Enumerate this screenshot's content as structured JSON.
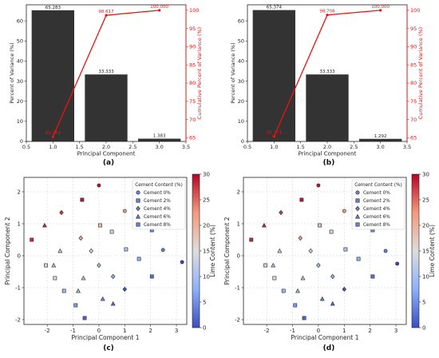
{
  "chart_data": [
    {
      "type": "bar",
      "panel_label": "(a)",
      "xlabel": "Principal Component",
      "ylabel": "Percent of Variance (%)",
      "ylabel_right": "Cumulative Percent of Variance (%)",
      "xlim": [
        0.5,
        3.5
      ],
      "ylim": [
        0,
        68
      ],
      "ylim_right": [
        64,
        101.5
      ],
      "xticks": [
        "0.5",
        "1.0",
        "1.5",
        "2.0",
        "2.5",
        "3.0",
        "3.5"
      ],
      "yticks": [
        "0",
        "10",
        "20",
        "30",
        "40",
        "50",
        "60"
      ],
      "yticks_right": [
        "65",
        "70",
        "75",
        "80",
        "85",
        "90",
        "95",
        "100"
      ],
      "categories": [
        1,
        2,
        3
      ],
      "values": [
        65.283,
        33.333,
        1.383
      ],
      "value_labels": [
        "65.283",
        "33.333",
        "1.383"
      ],
      "cumulative": [
        65.283,
        98.617,
        100.0
      ],
      "cumulative_labels": [
        "65.283",
        "98.617",
        "100.000"
      ],
      "grid": false,
      "bar_color": "#333333",
      "line_color": "#ee1111"
    },
    {
      "type": "bar",
      "panel_label": "(b)",
      "xlabel": "Principal Component",
      "ylabel": "Percent of Variance (%)",
      "ylabel_right": "Cumulative Percent of Variance (%)",
      "xlim": [
        0.5,
        3.5
      ],
      "ylim": [
        0,
        68
      ],
      "ylim_right": [
        64,
        101.5
      ],
      "xticks": [
        "0.5",
        "1.0",
        "1.5",
        "2.0",
        "2.5",
        "3.0",
        "3.5"
      ],
      "yticks": [
        "0",
        "10",
        "20",
        "30",
        "40",
        "50",
        "60"
      ],
      "yticks_right": [
        "65",
        "70",
        "75",
        "80",
        "85",
        "90",
        "95",
        "100"
      ],
      "categories": [
        1,
        2,
        3
      ],
      "values": [
        65.374,
        33.333,
        1.292
      ],
      "value_labels": [
        "65.374",
        "33.333",
        "1.292"
      ],
      "cumulative": [
        65.374,
        98.708,
        100.0
      ],
      "cumulative_labels": [
        "65.374",
        "98.708",
        "100.000"
      ],
      "grid": false,
      "bar_color": "#333333",
      "line_color": "#ee1111"
    },
    {
      "type": "scatter",
      "panel_label": "(c)",
      "xlabel": "Principal Component 1",
      "ylabel": "Principal Component 2",
      "colorbar_label": "Lime Content (%)",
      "colorbar_range": [
        0,
        30
      ],
      "colorbar_ticks": [
        "0",
        "5",
        "10",
        "15",
        "20",
        "25",
        "30"
      ],
      "xlim": [
        -2.9,
        3.4
      ],
      "ylim": [
        -2.15,
        2.45
      ],
      "xticks": [
        "-2",
        "-1",
        "0",
        "1",
        "2",
        "3"
      ],
      "yticks": [
        "-2",
        "-1",
        "0",
        "1",
        "2"
      ],
      "grid": true,
      "legend": {
        "title": "Cement Content (%)",
        "location": "top-right",
        "entries": [
          "Cement 0%",
          "Cement 2%",
          "Cement 4%",
          "Cement 6%",
          "Cement 8%"
        ],
        "markers": [
          "circle",
          "square",
          "diamond",
          "triangle",
          "square"
        ],
        "color": "#6b82c9"
      },
      "points": [
        {
          "x": 3.22,
          "y": -0.2,
          "cement": 0,
          "lime": 0
        },
        {
          "x": 2.48,
          "y": 0.18,
          "cement": 0,
          "lime": 4
        },
        {
          "x": 1.5,
          "y": 1.0,
          "cement": 0,
          "lime": 13
        },
        {
          "x": 1.0,
          "y": 1.4,
          "cement": 0,
          "lime": 22
        },
        {
          "x": 0.0,
          "y": 2.2,
          "cement": 0,
          "lime": 29
        },
        {
          "x": 2.05,
          "y": 0.8,
          "cement": 2,
          "lime": 5
        },
        {
          "x": 1.55,
          "y": -0.1,
          "cement": 2,
          "lime": 8
        },
        {
          "x": 2.05,
          "y": -0.65,
          "cement": 2,
          "lime": 3
        },
        {
          "x": 1.05,
          "y": 0.2,
          "cement": 2,
          "lime": 11
        },
        {
          "x": 0.5,
          "y": 0.75,
          "cement": 2,
          "lime": 14
        },
        {
          "x": 0.05,
          "y": 0.95,
          "cement": 2,
          "lime": 18
        },
        {
          "x": -0.65,
          "y": 1.75,
          "cement": 2,
          "lime": 29
        },
        {
          "x": -2.6,
          "y": 0.5,
          "cement": 2,
          "lime": 28
        },
        {
          "x": -2.05,
          "y": -0.3,
          "cement": 2,
          "lime": 16
        },
        {
          "x": -1.7,
          "y": -0.7,
          "cement": 2,
          "lime": 15
        },
        {
          "x": -1.35,
          "y": -1.1,
          "cement": 2,
          "lime": 9
        },
        {
          "x": -0.9,
          "y": -1.55,
          "cement": 2,
          "lime": 6
        },
        {
          "x": -0.55,
          "y": -1.95,
          "cement": 2,
          "lime": 2
        },
        {
          "x": 1.0,
          "y": -1.05,
          "cement": 4,
          "lime": 1
        },
        {
          "x": 0.0,
          "y": -0.3,
          "cement": 4,
          "lime": 10
        },
        {
          "x": 0.55,
          "y": -0.65,
          "cement": 4,
          "lime": 8
        },
        {
          "x": -0.3,
          "y": 0.15,
          "cement": 4,
          "lime": 14
        },
        {
          "x": -0.7,
          "y": 0.55,
          "cement": 4,
          "lime": 21
        },
        {
          "x": -1.45,
          "y": 1.35,
          "cement": 4,
          "lime": 27
        },
        {
          "x": -2.1,
          "y": 0.95,
          "cement": 6,
          "lime": 28
        },
        {
          "x": -1.5,
          "y": 0.15,
          "cement": 6,
          "lime": 13
        },
        {
          "x": -1.75,
          "y": -0.3,
          "cement": 6,
          "lime": 11
        },
        {
          "x": -0.6,
          "y": -0.7,
          "cement": 6,
          "lime": 12
        },
        {
          "x": -0.8,
          "y": -1.1,
          "cement": 6,
          "lime": 10
        },
        {
          "x": 0.15,
          "y": -1.35,
          "cement": 6,
          "lime": 5
        },
        {
          "x": 0.55,
          "y": -1.5,
          "cement": 6,
          "lime": 3
        }
      ]
    },
    {
      "type": "scatter",
      "panel_label": "(d)",
      "xlabel": "Principal Component 1",
      "ylabel": "Principal Component 2",
      "colorbar_label": "Lime Content (%)",
      "colorbar_range": [
        0,
        30
      ],
      "colorbar_ticks": [
        "0",
        "5",
        "10",
        "15",
        "20",
        "25",
        "30"
      ],
      "xlim": [
        -2.9,
        3.4
      ],
      "ylim": [
        -2.15,
        2.45
      ],
      "xticks": [
        "-2",
        "-1",
        "0",
        "1",
        "2",
        "3"
      ],
      "yticks": [
        "-2",
        "-1",
        "0",
        "1",
        "2"
      ],
      "grid": true,
      "legend": {
        "title": "Cement Content (%)",
        "location": "top-right",
        "entries": [
          "Cement 0%",
          "Cement 2%",
          "Cement 4%",
          "Cement 6%",
          "Cement 8%"
        ],
        "markers": [
          "circle",
          "square",
          "diamond",
          "triangle",
          "square"
        ],
        "color": "#6b82c9"
      },
      "points": [
        {
          "x": 3.05,
          "y": -0.25,
          "cement": 0,
          "lime": 0
        },
        {
          "x": 2.6,
          "y": 0.15,
          "cement": 0,
          "lime": 4
        },
        {
          "x": 1.5,
          "y": 1.0,
          "cement": 0,
          "lime": 13
        },
        {
          "x": 1.0,
          "y": 1.4,
          "cement": 0,
          "lime": 22
        },
        {
          "x": 0.0,
          "y": 2.2,
          "cement": 0,
          "lime": 29
        },
        {
          "x": 2.1,
          "y": 0.8,
          "cement": 2,
          "lime": 5
        },
        {
          "x": 1.55,
          "y": -0.1,
          "cement": 2,
          "lime": 8
        },
        {
          "x": 2.1,
          "y": -0.65,
          "cement": 2,
          "lime": 3
        },
        {
          "x": 1.05,
          "y": 0.2,
          "cement": 2,
          "lime": 11
        },
        {
          "x": 0.5,
          "y": 0.75,
          "cement": 2,
          "lime": 14
        },
        {
          "x": 0.05,
          "y": 0.95,
          "cement": 2,
          "lime": 18
        },
        {
          "x": -0.65,
          "y": 1.75,
          "cement": 2,
          "lime": 29
        },
        {
          "x": -2.6,
          "y": 0.5,
          "cement": 2,
          "lime": 28
        },
        {
          "x": -2.05,
          "y": -0.3,
          "cement": 2,
          "lime": 16
        },
        {
          "x": -1.7,
          "y": -0.7,
          "cement": 2,
          "lime": 15
        },
        {
          "x": -1.35,
          "y": -1.1,
          "cement": 2,
          "lime": 9
        },
        {
          "x": -0.9,
          "y": -1.55,
          "cement": 2,
          "lime": 6
        },
        {
          "x": -0.55,
          "y": -1.95,
          "cement": 2,
          "lime": 2
        },
        {
          "x": 1.0,
          "y": -1.05,
          "cement": 4,
          "lime": 1
        },
        {
          "x": 0.0,
          "y": -0.3,
          "cement": 4,
          "lime": 10
        },
        {
          "x": 0.55,
          "y": -0.65,
          "cement": 4,
          "lime": 8
        },
        {
          "x": -0.3,
          "y": 0.15,
          "cement": 4,
          "lime": 14
        },
        {
          "x": -0.7,
          "y": 0.55,
          "cement": 4,
          "lime": 21
        },
        {
          "x": -1.45,
          "y": 1.35,
          "cement": 4,
          "lime": 27
        },
        {
          "x": -2.1,
          "y": 0.95,
          "cement": 6,
          "lime": 28
        },
        {
          "x": -1.5,
          "y": 0.15,
          "cement": 6,
          "lime": 13
        },
        {
          "x": -1.75,
          "y": -0.3,
          "cement": 6,
          "lime": 11
        },
        {
          "x": -0.6,
          "y": -0.7,
          "cement": 6,
          "lime": 12
        },
        {
          "x": -0.8,
          "y": -1.1,
          "cement": 6,
          "lime": 10
        },
        {
          "x": 0.15,
          "y": -1.35,
          "cement": 6,
          "lime": 5
        },
        {
          "x": 0.55,
          "y": -1.5,
          "cement": 6,
          "lime": 3
        }
      ]
    }
  ]
}
